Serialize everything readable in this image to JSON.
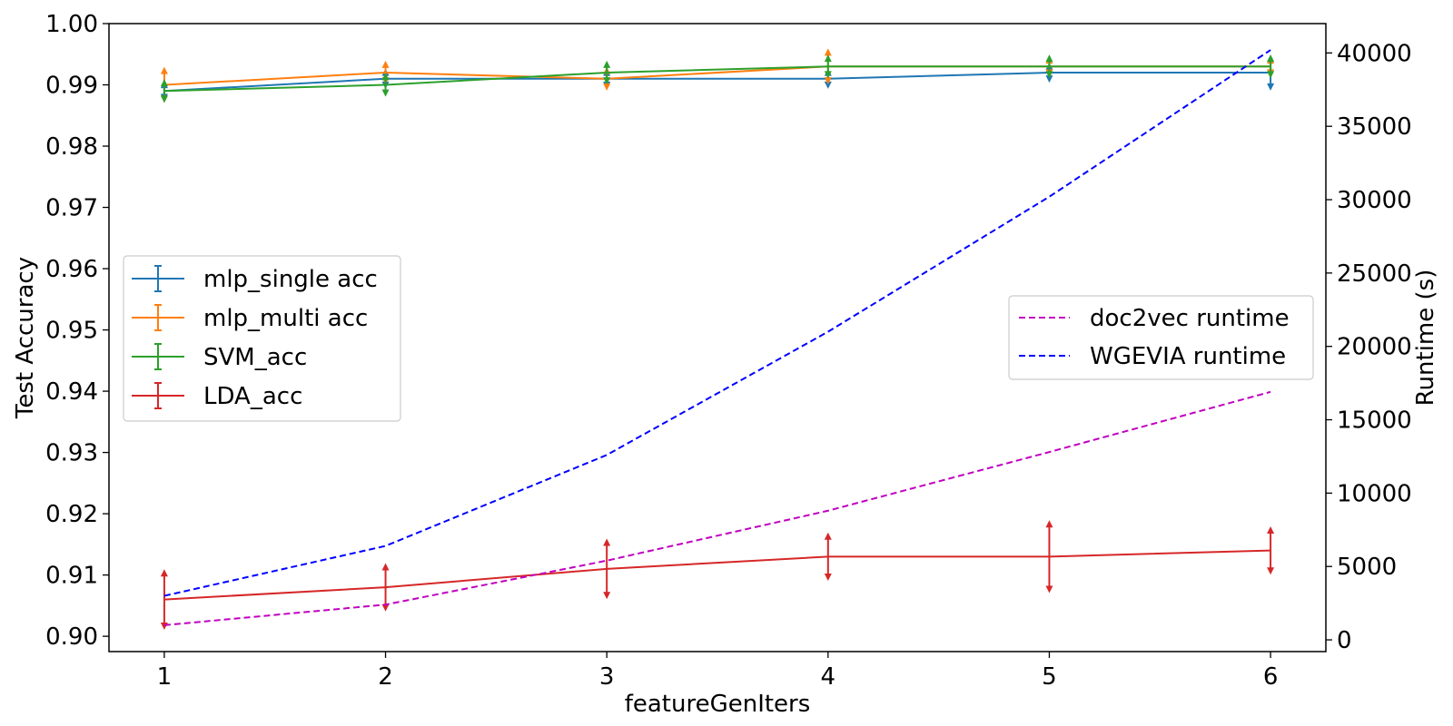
{
  "chart_data": {
    "type": "line",
    "x": [
      1,
      2,
      3,
      4,
      5,
      6
    ],
    "xlabel": "featureGenIters",
    "ylabel_left": "Test Accuracy",
    "ylabel_right": "Runtime (s)",
    "xlim": [
      0.75,
      6.25
    ],
    "ylim_left": [
      0.8975,
      1.0
    ],
    "ylim_right": [
      -800,
      42000
    ],
    "x_ticks": [
      1,
      2,
      3,
      4,
      5,
      6
    ],
    "y_left_ticks": [
      "0.90",
      "0.91",
      "0.92",
      "0.93",
      "0.94",
      "0.95",
      "0.96",
      "0.97",
      "0.98",
      "0.99",
      "1.00"
    ],
    "y_right_ticks": [
      "0",
      "5000",
      "10000",
      "15000",
      "20000",
      "25000",
      "30000",
      "35000",
      "40000"
    ],
    "grid": false,
    "accuracy_series": [
      {
        "name": "mlp_single acc",
        "color": "#1f77b4",
        "values": [
          0.989,
          0.991,
          0.991,
          0.991,
          0.992,
          0.992
        ],
        "errors": [
          0.0012,
          0.0012,
          0.0012,
          0.0012,
          0.0012,
          0.0025
        ]
      },
      {
        "name": "mlp_multi acc",
        "color": "#ff7f0e",
        "values": [
          0.99,
          0.992,
          0.991,
          0.993,
          0.993,
          0.993
        ],
        "errors": [
          0.0025,
          0.0015,
          0.0015,
          0.0025,
          0.0012,
          0.0012
        ]
      },
      {
        "name": "SVM_acc",
        "color": "#2ca02c",
        "values": [
          0.989,
          0.99,
          0.992,
          0.993,
          0.993,
          0.993
        ],
        "errors": [
          0.0015,
          0.0015,
          0.0015,
          0.0015,
          0.0015,
          0.0015
        ]
      },
      {
        "name": "LDA_acc",
        "color": "#d62728",
        "values": [
          0.906,
          0.908,
          0.911,
          0.913,
          0.913,
          0.914
        ],
        "errors": [
          0.0045,
          0.0035,
          0.0045,
          0.0035,
          0.0055,
          0.0035
        ]
      }
    ],
    "runtime_series": [
      {
        "name": "doc2vec runtime",
        "color": "#c000c0",
        "values": [
          1000,
          2400,
          5400,
          8800,
          12800,
          16900
        ]
      },
      {
        "name": "WGEVIA runtime",
        "color": "#0000ff",
        "values": [
          3000,
          6400,
          12600,
          21000,
          30200,
          40200
        ]
      }
    ],
    "legend_left_placement": "center-left",
    "legend_right_placement": "center-right"
  }
}
